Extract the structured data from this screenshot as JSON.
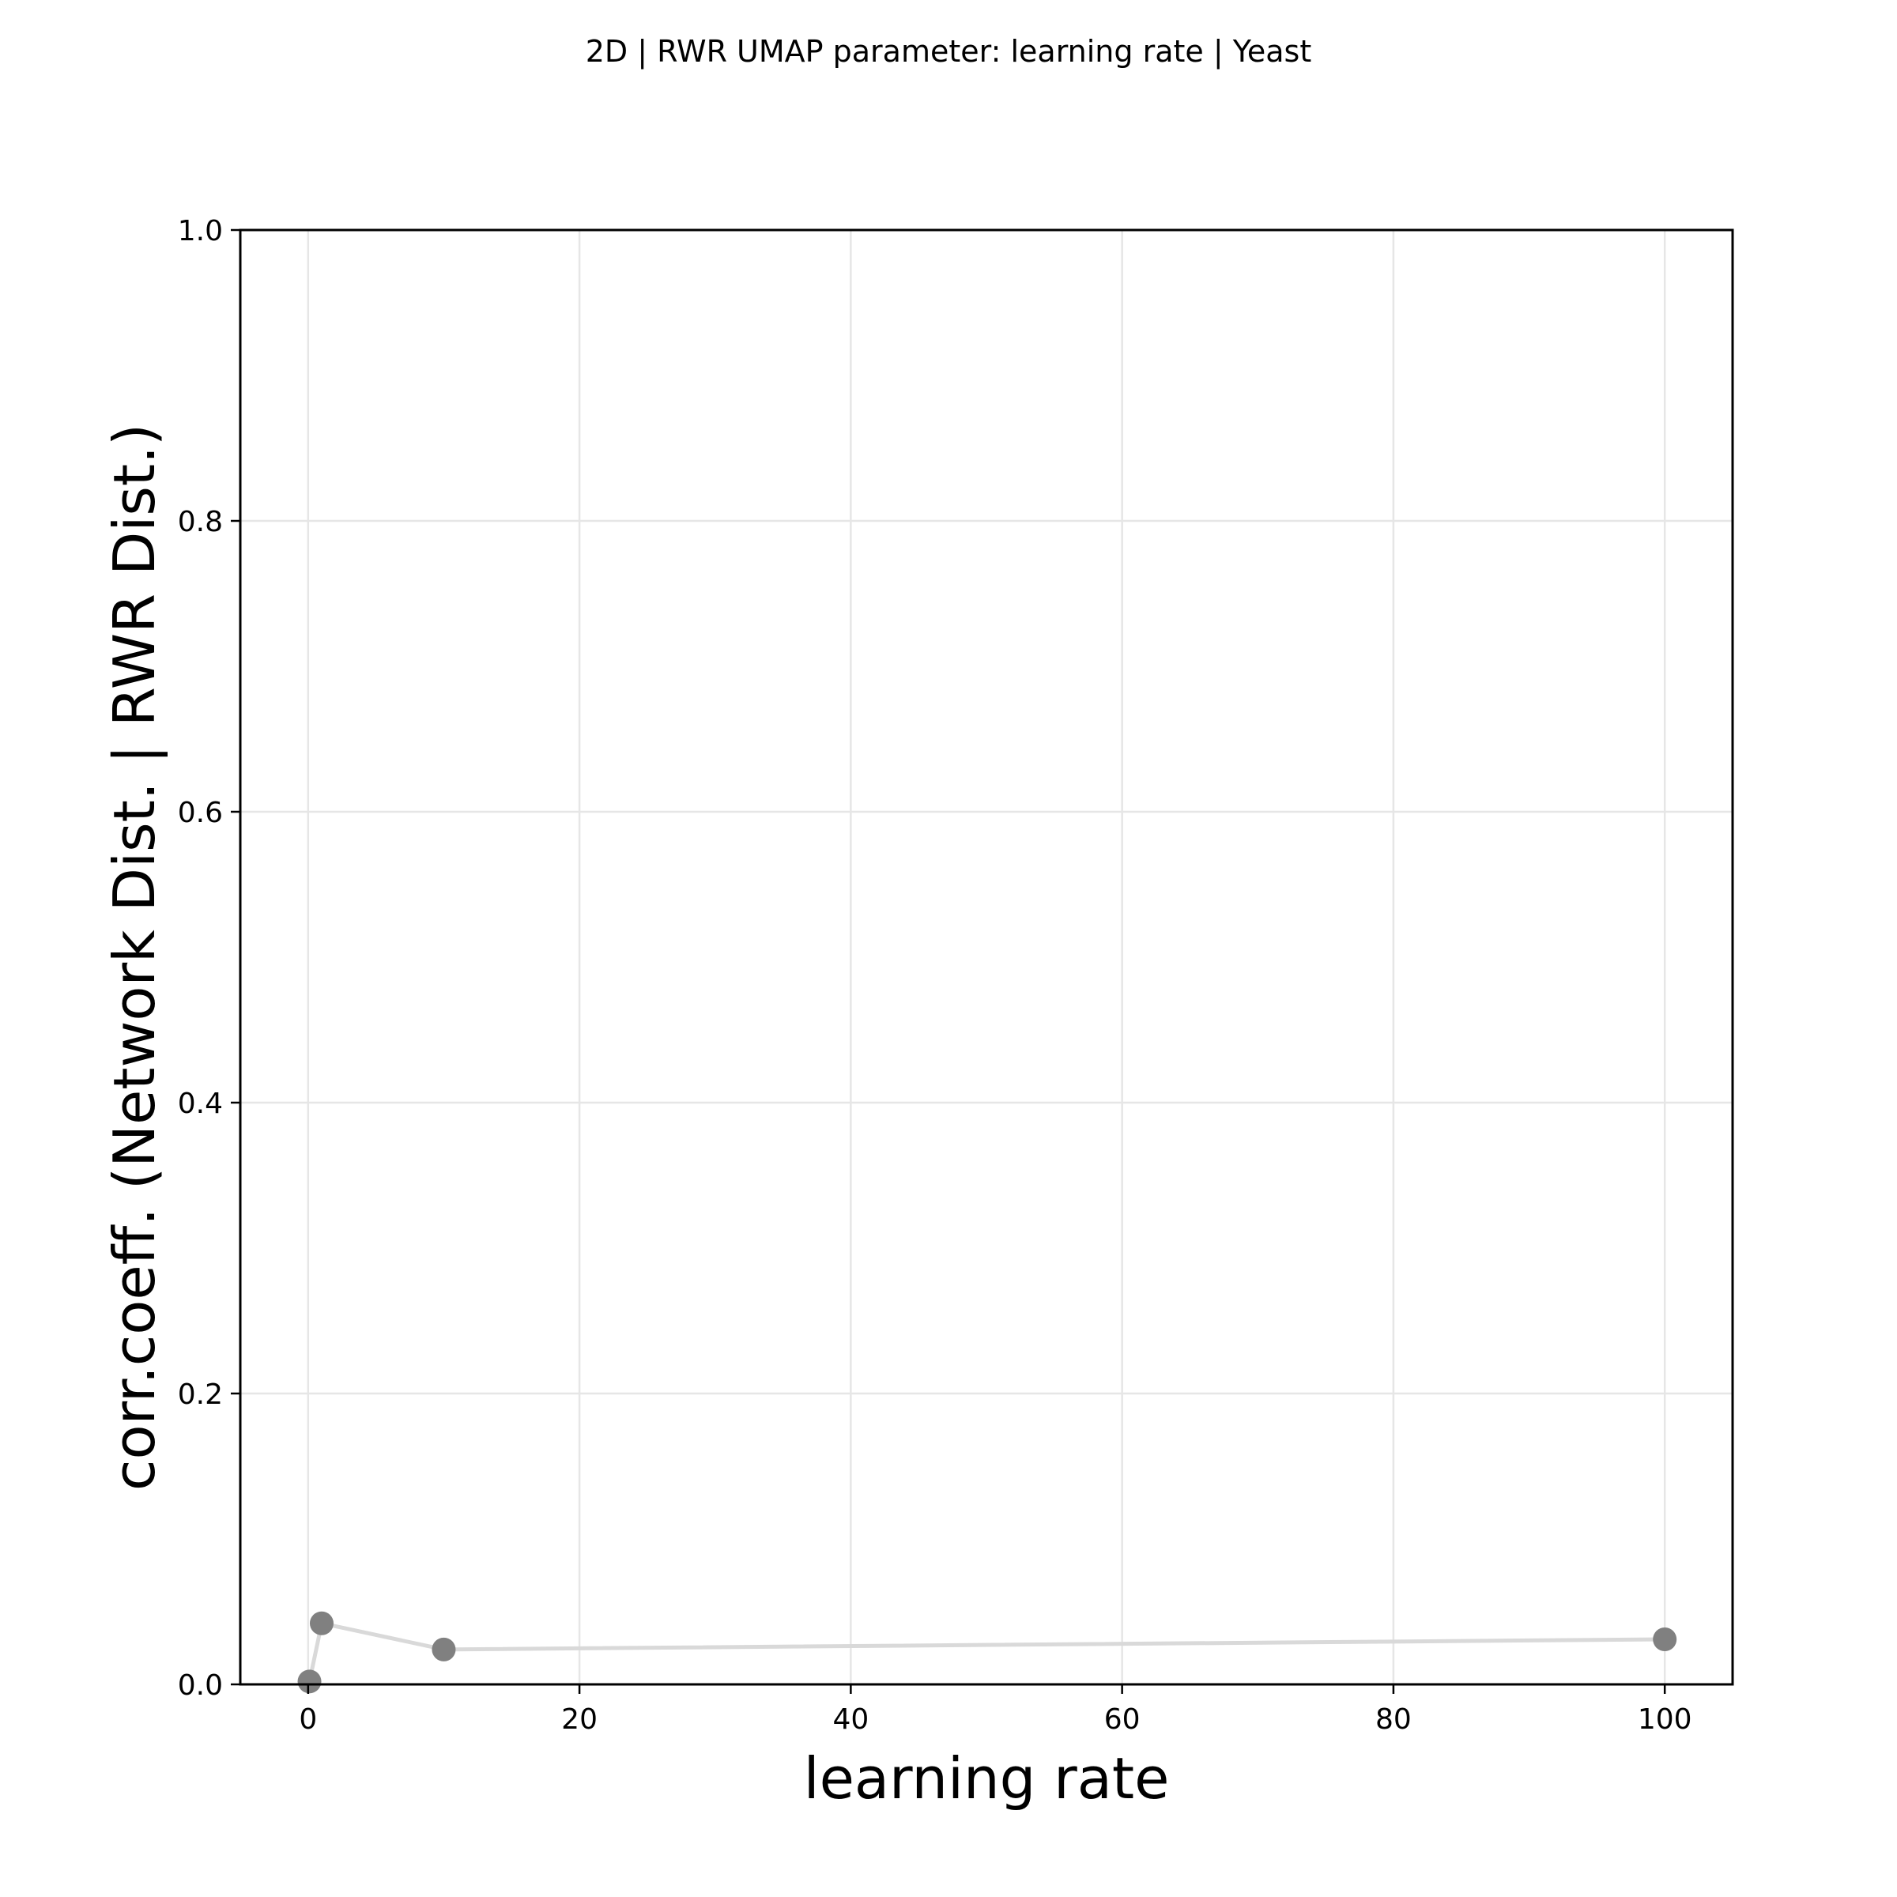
{
  "chart_data": {
    "type": "line",
    "title": "2D | RWR UMAP parameter: learning rate | Yeast",
    "xlabel": "learning rate",
    "ylabel": "corr.coeff. (Network Dist. | RWR Dist.)",
    "xlim": [
      -5,
      105
    ],
    "ylim": [
      0.0,
      1.0
    ],
    "xticks": [
      "0",
      "20",
      "40",
      "60",
      "80",
      "100"
    ],
    "yticks": [
      "0.0",
      "0.2",
      "0.4",
      "0.6",
      "0.8",
      "1.0"
    ],
    "grid": true,
    "legend": "none",
    "series": [
      {
        "x": [
          0.1,
          1,
          10,
          100
        ],
        "y": [
          0.002,
          0.042,
          0.024,
          0.031
        ],
        "line_color": "#d9d9d9",
        "marker_color": "#808080"
      }
    ]
  }
}
